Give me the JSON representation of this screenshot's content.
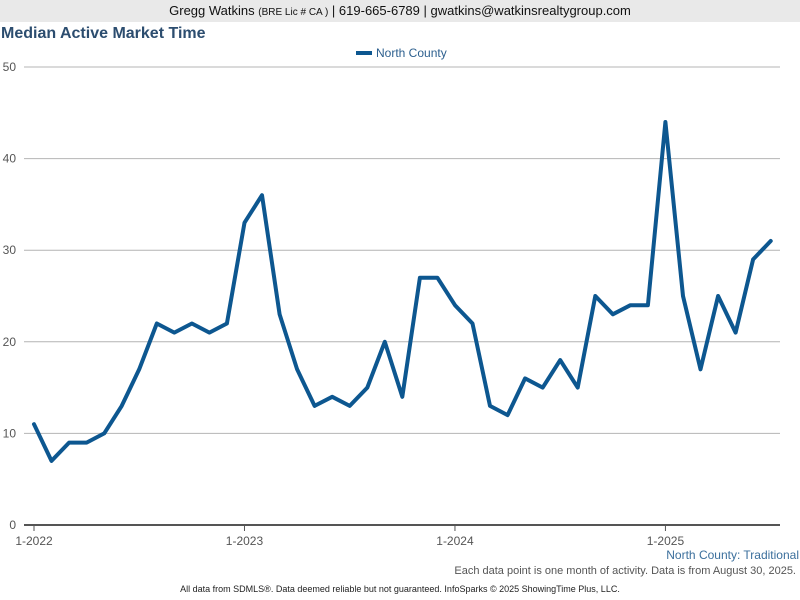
{
  "header": {
    "name": "Gregg Watkins",
    "license": "(BRE Lic # CA )",
    "separator1": "|",
    "phone": "619-665-6789",
    "separator2": "|",
    "email": "gwatkins@watkinsrealtygroup.com"
  },
  "colors": {
    "line": "#0d5790",
    "grid": "#b4b4b4",
    "header_bg": "#e9e9e9",
    "title": "#2c4d6f"
  },
  "chart_data": {
    "type": "line",
    "title": "Median Active Market Time",
    "legend_position": "top-center",
    "grid": true,
    "ylim": [
      0,
      50
    ],
    "yticks": [
      0,
      10,
      20,
      30,
      40,
      50
    ],
    "xtick_labels": [
      "1-2022",
      "1-2023",
      "1-2024",
      "1-2025"
    ],
    "x": [
      "2022-01",
      "2022-02",
      "2022-03",
      "2022-04",
      "2022-05",
      "2022-06",
      "2022-07",
      "2022-08",
      "2022-09",
      "2022-10",
      "2022-11",
      "2022-12",
      "2023-01",
      "2023-02",
      "2023-03",
      "2023-04",
      "2023-05",
      "2023-06",
      "2023-07",
      "2023-08",
      "2023-09",
      "2023-10",
      "2023-11",
      "2023-12",
      "2024-01",
      "2024-02",
      "2024-03",
      "2024-04",
      "2024-05",
      "2024-06",
      "2024-07",
      "2024-08",
      "2024-09",
      "2024-10",
      "2024-11",
      "2024-12",
      "2025-01",
      "2025-02",
      "2025-03",
      "2025-04",
      "2025-05",
      "2025-06",
      "2025-07"
    ],
    "series": [
      {
        "name": "North County",
        "values": [
          11,
          7,
          9,
          9,
          10,
          13,
          17,
          22,
          21,
          22,
          21,
          22,
          33,
          36,
          23,
          17,
          13,
          14,
          13,
          15,
          20,
          14,
          27,
          27,
          24,
          22,
          13,
          12,
          16,
          15,
          18,
          15,
          25,
          23,
          24,
          24,
          44,
          25,
          17,
          25,
          21,
          29,
          31
        ]
      }
    ]
  },
  "region_label": "North County: Traditional",
  "note": "Each data point is one month of activity. Data is from August 30, 2025.",
  "footer": "All data from SDMLS®. Data deemed reliable but not guaranteed. InfoSparks © 2025 ShowingTime Plus, LLC."
}
